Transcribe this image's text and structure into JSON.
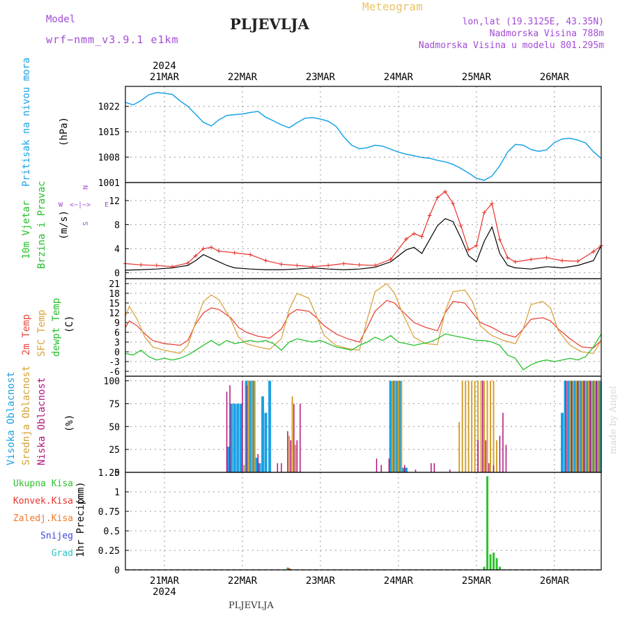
{
  "header": {
    "model_label": "Model",
    "model_name": "wrf−nmm_v3.9.1  e1km",
    "title": "PLJEVLJA",
    "meteogram": "Meteogram",
    "lonlat": "lon,lat (19.3125E, 43.35N)",
    "altitude": "Nadmorska Visina 788m",
    "model_altitude": "Nadmorska Visina u modelu 801.295m",
    "watermark": "made by Angel",
    "footer_title": "PLJEVLJA"
  },
  "colors": {
    "pressure": "#1aa3e6",
    "wind_speed": "#000000",
    "wind_gust": "#e8322b",
    "t2m": "#e8473c",
    "sfc_temp": "#d9a441",
    "dewpoint": "#25c02a",
    "high_cloud": "#1ba0e2",
    "mid_cloud": "#d4a12f",
    "low_cloud": "#b2127d",
    "precip_total": "#2ec22e",
    "precip_conv": "#e8322b",
    "header_purple": "#a24bd6",
    "header_gold": "#e8c46b",
    "grid": "#9a9a9a"
  },
  "chart_data": [
    {
      "type": "line",
      "panel": "pressure",
      "ylabel_main": "Pritisak na nivou mora",
      "ylabel_unit": "(hPa)",
      "yticks": [
        1001,
        1008,
        1015,
        1022
      ],
      "ylim": [
        1001,
        1027.5
      ],
      "x_top_year": "2024",
      "dates": [
        "21MAR",
        "22MAR",
        "23MAR",
        "24MAR",
        "25MAR",
        "26MAR"
      ],
      "date_x_days": [
        0.5,
        1.5,
        2.5,
        3.5,
        4.5,
        5.5
      ],
      "xlim_days": [
        0,
        6.1
      ],
      "grid": true,
      "series": [
        {
          "key": "pressure",
          "x": [
            0,
            0.1,
            0.2,
            0.3,
            0.4,
            0.5,
            0.6,
            0.7,
            0.8,
            0.9,
            1.0,
            1.1,
            1.2,
            1.3,
            1.4,
            1.5,
            1.6,
            1.7,
            1.8,
            1.9,
            2.0,
            2.1,
            2.2,
            2.3,
            2.4,
            2.5,
            2.6,
            2.7,
            2.8,
            2.9,
            3.0,
            3.1,
            3.2,
            3.3,
            3.4,
            3.5,
            3.6,
            3.7,
            3.8,
            3.9,
            4.0,
            4.1,
            4.2,
            4.3,
            4.4,
            4.5,
            4.6,
            4.7,
            4.8,
            4.9,
            5.0,
            5.1,
            5.2,
            5.3,
            5.4,
            5.5,
            5.6,
            5.7,
            5.8,
            5.9,
            6.0,
            6.1
          ],
          "values": [
            1023.1,
            1022.4,
            1023.6,
            1025.2,
            1025.8,
            1025.6,
            1025.3,
            1023.5,
            1022.0,
            1019.8,
            1017.6,
            1016.6,
            1018.3,
            1019.5,
            1019.7,
            1019.9,
            1020.3,
            1020.6,
            1019.0,
            1018.0,
            1016.9,
            1016.1,
            1017.5,
            1018.7,
            1018.9,
            1018.5,
            1017.9,
            1016.5,
            1013.6,
            1011.3,
            1010.3,
            1010.6,
            1011.3,
            1011.0,
            1010.2,
            1009.4,
            1008.8,
            1008.4,
            1007.9,
            1007.7,
            1007.1,
            1006.7,
            1006.0,
            1004.9,
            1003.6,
            1002.2,
            1001.6,
            1002.8,
            1005.6,
            1009.4,
            1011.5,
            1011.3,
            1010.1,
            1009.6,
            1010.0,
            1012.0,
            1013.0,
            1013.2,
            1012.7,
            1011.9,
            1009.5,
            1007.6
          ]
        }
      ]
    },
    {
      "type": "line",
      "panel": "wind",
      "ylabel_main": "10m Vjetar",
      "ylabel_sub": "Brzina i Pravac",
      "ylabel_unit": "(m/s)",
      "compass": {
        "north": "N",
        "south": "S",
        "west": "W",
        "east": "E",
        "arrows": "<−|−>"
      },
      "yticks": [
        0,
        4,
        8,
        12
      ],
      "ylim": [
        -1,
        15
      ],
      "grid": true,
      "series": [
        {
          "key": "wind_speed",
          "name": "speed",
          "x": [
            0,
            0.2,
            0.4,
            0.6,
            0.8,
            0.9,
            1.0,
            1.2,
            1.3,
            1.4,
            1.6,
            1.8,
            2.0,
            2.2,
            2.4,
            2.6,
            2.8,
            3.0,
            3.2,
            3.4,
            3.6,
            3.7,
            3.8,
            3.9,
            4.0,
            4.1,
            4.2,
            4.3,
            4.4,
            4.5,
            4.6,
            4.7,
            4.8,
            4.9,
            5.0,
            5.1,
            5.2,
            5.3,
            5.4,
            5.5,
            5.6,
            5.8,
            6.0,
            6.1
          ],
          "values": [
            0.4,
            0.5,
            0.6,
            0.8,
            1.2,
            2.0,
            3.0,
            1.8,
            1.2,
            0.8,
            0.6,
            0.5,
            0.5,
            0.6,
            0.8,
            0.6,
            0.5,
            0.6,
            0.9,
            1.8,
            3.8,
            4.2,
            3.2,
            5.5,
            7.8,
            9.0,
            8.5,
            5.8,
            2.8,
            1.8,
            5.2,
            7.6,
            3.2,
            1.2,
            0.8,
            0.7,
            0.6,
            0.8,
            1.0,
            0.9,
            0.8,
            1.2,
            2.0,
            4.5
          ]
        },
        {
          "key": "wind_gust",
          "name": "gust",
          "x": [
            0,
            0.2,
            0.4,
            0.6,
            0.8,
            0.9,
            1.0,
            1.1,
            1.2,
            1.4,
            1.6,
            1.8,
            2.0,
            2.2,
            2.4,
            2.6,
            2.8,
            3.0,
            3.2,
            3.4,
            3.6,
            3.7,
            3.8,
            3.9,
            4.0,
            4.1,
            4.2,
            4.3,
            4.4,
            4.5,
            4.6,
            4.7,
            4.8,
            4.9,
            5.0,
            5.2,
            5.4,
            5.6,
            5.8,
            6.0,
            6.1
          ],
          "values": [
            1.5,
            1.3,
            1.2,
            1.0,
            1.6,
            2.8,
            4.0,
            4.2,
            3.6,
            3.3,
            3.0,
            2.0,
            1.4,
            1.2,
            1.0,
            1.2,
            1.5,
            1.3,
            1.2,
            2.2,
            5.6,
            6.5,
            6.0,
            9.5,
            12.5,
            13.5,
            11.5,
            7.8,
            3.8,
            4.5,
            10.0,
            11.5,
            5.5,
            2.5,
            1.8,
            2.2,
            2.5,
            2.0,
            1.9,
            3.5,
            4.5
          ]
        }
      ]
    },
    {
      "type": "line",
      "panel": "temperature",
      "ylabel_main": "2m Temp",
      "ylabel_sub": "SFC Temp",
      "ylabel_sub2": "dewpt Temp",
      "ylabel_unit": "(C)",
      "yticks": [
        -6,
        -3,
        0,
        3,
        6,
        9,
        12,
        15,
        18,
        21
      ],
      "ylim": [
        -7.5,
        22.5
      ],
      "grid": true,
      "series": [
        {
          "key": "t2m",
          "name": "2m Temp",
          "x": [
            0,
            0.05,
            0.15,
            0.25,
            0.35,
            0.5,
            0.6,
            0.7,
            0.8,
            0.9,
            1.0,
            1.1,
            1.2,
            1.35,
            1.45,
            1.55,
            1.7,
            1.85,
            2.0,
            2.1,
            2.2,
            2.35,
            2.45,
            2.55,
            2.7,
            2.85,
            3.0,
            3.1,
            3.2,
            3.35,
            3.45,
            3.55,
            3.7,
            3.85,
            4.0,
            4.1,
            4.2,
            4.35,
            4.45,
            4.55,
            4.7,
            4.85,
            5.0,
            5.1,
            5.2,
            5.35,
            5.45,
            5.55,
            5.7,
            5.85,
            6.0,
            6.1
          ],
          "values": [
            7.5,
            9.5,
            8.0,
            5.5,
            3.5,
            2.5,
            2.3,
            2.0,
            3.5,
            8.5,
            12.0,
            13.5,
            13.0,
            10.5,
            7.5,
            6.0,
            4.8,
            4.2,
            7.0,
            11.5,
            13.0,
            12.5,
            10.5,
            8.0,
            5.5,
            4.0,
            3.0,
            7.5,
            12.5,
            15.8,
            15.0,
            12.5,
            9.0,
            7.5,
            6.5,
            12.0,
            15.5,
            15.0,
            12.0,
            9.0,
            7.5,
            5.5,
            4.5,
            7.0,
            10.0,
            10.5,
            9.5,
            7.0,
            4.0,
            1.5,
            1.2,
            3.5
          ]
        },
        {
          "key": "sfc_temp",
          "name": "SFC Temp",
          "x": [
            0,
            0.05,
            0.15,
            0.25,
            0.35,
            0.5,
            0.6,
            0.7,
            0.8,
            0.9,
            1.0,
            1.1,
            1.2,
            1.35,
            1.45,
            1.55,
            1.7,
            1.85,
            2.0,
            2.1,
            2.2,
            2.35,
            2.45,
            2.55,
            2.7,
            2.85,
            3.0,
            3.1,
            3.2,
            3.35,
            3.45,
            3.55,
            3.7,
            3.85,
            4.0,
            4.1,
            4.2,
            4.35,
            4.45,
            4.55,
            4.7,
            4.85,
            5.0,
            5.1,
            5.2,
            5.35,
            5.45,
            5.55,
            5.7,
            5.85,
            6.0,
            6.1
          ],
          "values": [
            11.0,
            14.0,
            10.0,
            4.5,
            1.5,
            0.5,
            0.0,
            -0.5,
            2.0,
            9.0,
            15.5,
            17.5,
            16.0,
            10.0,
            4.5,
            2.5,
            1.5,
            0.8,
            4.0,
            13.0,
            18.0,
            16.5,
            11.0,
            5.0,
            2.0,
            1.0,
            0.5,
            10.0,
            18.5,
            21.0,
            18.0,
            12.0,
            4.5,
            2.5,
            2.2,
            12.5,
            18.5,
            19.0,
            15.5,
            8.0,
            5.0,
            3.5,
            2.5,
            7.0,
            14.5,
            15.5,
            13.5,
            6.5,
            2.0,
            0.0,
            -0.5,
            3.5
          ]
        },
        {
          "key": "dewpoint",
          "name": "dewpt Temp",
          "x": [
            0,
            0.1,
            0.2,
            0.3,
            0.4,
            0.5,
            0.6,
            0.7,
            0.8,
            0.9,
            1.0,
            1.1,
            1.2,
            1.3,
            1.4,
            1.5,
            1.6,
            1.7,
            1.8,
            1.9,
            2.0,
            2.1,
            2.2,
            2.3,
            2.4,
            2.5,
            2.6,
            2.7,
            2.8,
            2.9,
            3.0,
            3.1,
            3.2,
            3.3,
            3.4,
            3.5,
            3.6,
            3.7,
            3.8,
            3.9,
            4.0,
            4.1,
            4.2,
            4.3,
            4.4,
            4.5,
            4.6,
            4.7,
            4.8,
            4.9,
            5.0,
            5.1,
            5.2,
            5.3,
            5.4,
            5.5,
            5.6,
            5.7,
            5.8,
            5.9,
            6.0,
            6.1
          ],
          "values": [
            -0.5,
            -1.0,
            0.5,
            -1.5,
            -2.5,
            -2.0,
            -2.5,
            -2.0,
            -1.0,
            0.5,
            2.0,
            3.5,
            2.0,
            3.5,
            2.5,
            3.0,
            3.5,
            3.0,
            3.5,
            2.5,
            0.5,
            3.0,
            4.0,
            3.5,
            3.0,
            3.5,
            2.5,
            1.5,
            1.0,
            0.5,
            2.0,
            3.0,
            4.5,
            3.5,
            5.0,
            3.0,
            2.5,
            2.0,
            2.5,
            3.0,
            4.0,
            5.5,
            5.0,
            4.5,
            4.0,
            3.5,
            3.5,
            3.0,
            2.0,
            -1.0,
            -2.0,
            -5.5,
            -4.0,
            -3.0,
            -2.5,
            -3.0,
            -2.5,
            -2.0,
            -2.5,
            -1.5,
            1.5,
            5.5
          ]
        }
      ]
    },
    {
      "type": "bar",
      "panel": "clouds",
      "ylabel_main": "Visoka Oblacnost",
      "ylabel_sub": "Srednja Oblacnost",
      "ylabel_sub2": "Niska Oblacnost",
      "ylabel_unit": "(%)",
      "yticks": [
        0,
        25,
        50,
        75,
        100
      ],
      "ylim": [
        0,
        105
      ],
      "grid": true,
      "series": [
        {
          "key": "high_cloud",
          "name": "Visoka Oblacnost",
          "x": [
            1.32,
            1.36,
            1.4,
            1.44,
            1.48,
            1.55,
            1.6,
            1.64,
            1.68,
            1.72,
            1.76,
            1.8,
            1.85,
            3.4,
            3.44,
            3.48,
            3.52,
            3.56,
            3.6,
            5.6,
            5.64,
            5.68,
            5.72,
            5.76,
            5.8,
            5.84,
            5.88,
            5.92,
            5.96,
            6.0,
            6.04,
            6.08
          ],
          "values": [
            28,
            75,
            75,
            75,
            75,
            100,
            100,
            100,
            16,
            10,
            83,
            65,
            100,
            100,
            100,
            100,
            100,
            5,
            5,
            65,
            100,
            100,
            100,
            100,
            100,
            100,
            100,
            100,
            100,
            100,
            100,
            100
          ]
        },
        {
          "key": "mid_cloud",
          "name": "Srednja Oblacnost",
          "x": [
            1.52,
            1.58,
            1.62,
            1.66,
            2.1,
            2.14,
            2.18,
            3.42,
            3.46,
            3.5,
            3.54,
            4.28,
            4.32,
            4.36,
            4.4,
            4.44,
            4.48,
            4.52,
            4.56,
            4.6,
            4.64,
            4.68,
            4.72,
            4.76,
            5.7,
            5.74,
            5.78,
            5.82,
            5.86,
            5.9,
            5.94,
            5.98,
            6.02,
            6.06,
            6.1
          ],
          "values": [
            8,
            100,
            100,
            100,
            40,
            83,
            30,
            100,
            100,
            100,
            100,
            55,
            100,
            100,
            100,
            100,
            100,
            100,
            100,
            100,
            100,
            100,
            100,
            35,
            100,
            100,
            100,
            100,
            100,
            100,
            100,
            100,
            100,
            100,
            100
          ]
        },
        {
          "key": "low_cloud",
          "name": "Niska Oblacnost",
          "x": [
            1.3,
            1.34,
            1.5,
            1.56,
            1.7,
            1.95,
            2.0,
            2.08,
            2.12,
            2.16,
            2.2,
            2.24,
            3.22,
            3.28,
            3.38,
            3.58,
            3.72,
            3.92,
            3.96,
            4.16,
            4.52,
            4.58,
            4.62,
            4.66,
            4.72,
            4.8,
            4.84,
            4.88,
            5.65,
            5.72,
            5.8,
            5.88,
            5.96,
            6.04
          ],
          "values": [
            88,
            95,
            100,
            95,
            20,
            10,
            10,
            45,
            35,
            75,
            35,
            75,
            15,
            8,
            15,
            8,
            3,
            10,
            10,
            3,
            35,
            100,
            35,
            10,
            8,
            40,
            65,
            30,
            100,
            100,
            100,
            100,
            100,
            100
          ]
        }
      ]
    },
    {
      "type": "bar",
      "panel": "precip",
      "ylabel_main": "1hr Precip",
      "ylabel_unit": "(mm)",
      "legend": [
        "Ukupna  Kisa",
        "Konvek.Kisa",
        "Zaledj.Kisa",
        "Snijeg",
        "Grad"
      ],
      "yticks": [
        0,
        0.25,
        0.5,
        0.75,
        1,
        1.25
      ],
      "ytick_labels": [
        "0",
        "0.25",
        "0.5",
        "0.75",
        "1",
        "1.25"
      ],
      "ylim": [
        0,
        1.25
      ],
      "grid": true,
      "series": [
        {
          "key": "precip_total",
          "name": "Ukupna  Kisa",
          "x": [
            2.08,
            2.12,
            4.6,
            4.64,
            4.68,
            4.72,
            4.76,
            4.8
          ],
          "values": [
            0.03,
            0.01,
            0.04,
            1.2,
            0.2,
            0.22,
            0.15,
            0.04
          ]
        },
        {
          "key": "precip_conv",
          "name": "Konvek.Kisa",
          "x": [
            2.1
          ],
          "values": [
            0.02
          ]
        }
      ]
    }
  ]
}
